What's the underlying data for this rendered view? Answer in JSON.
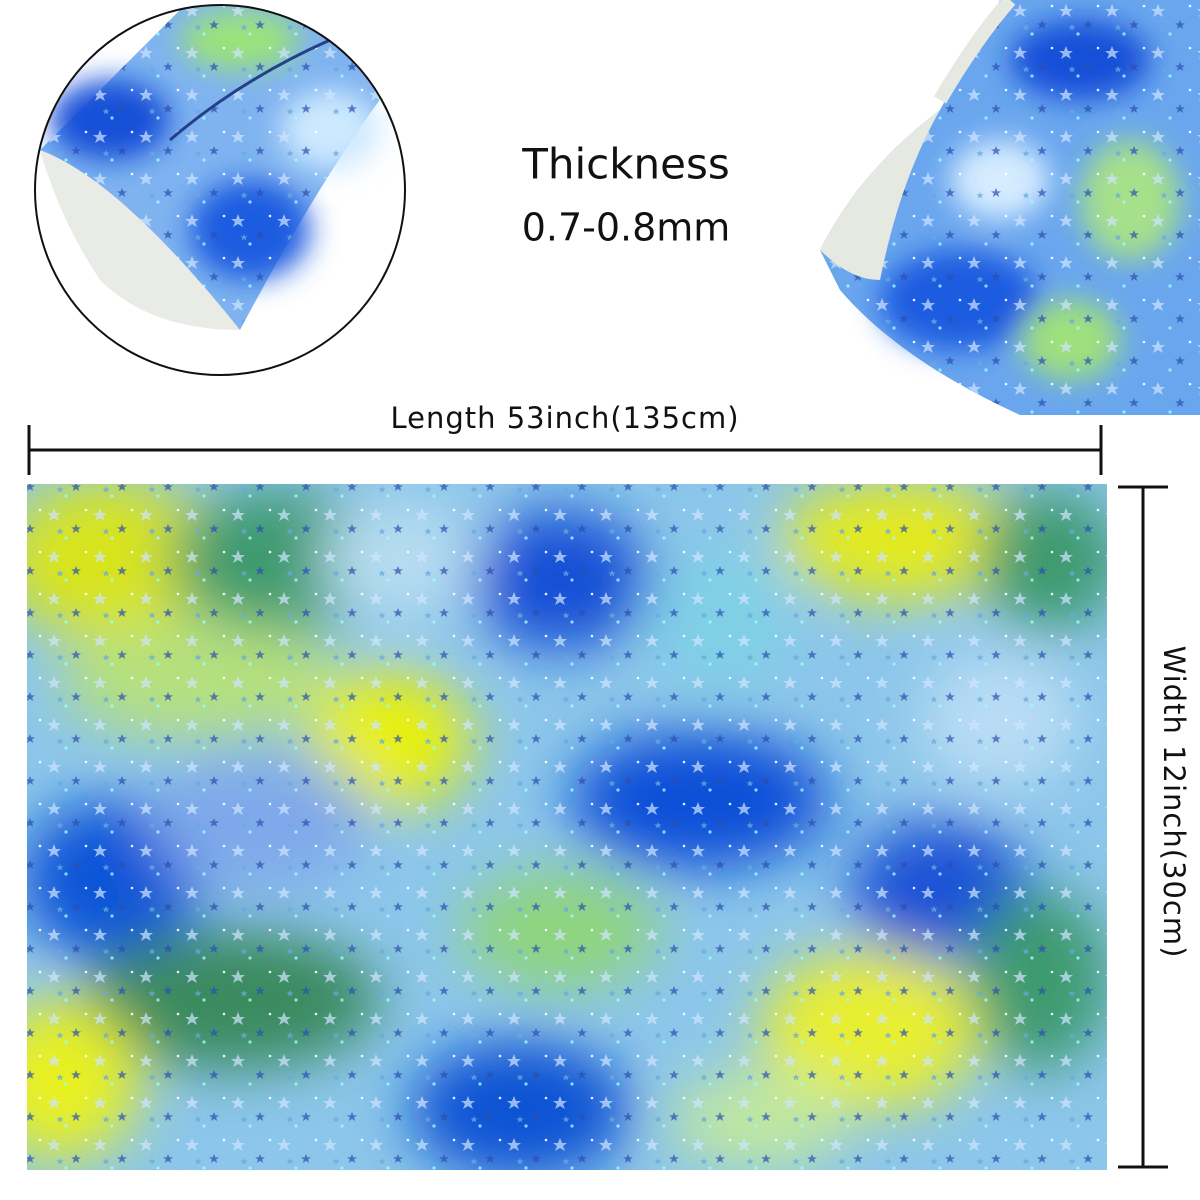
{
  "thickness": {
    "label": "Thickness",
    "value": "0.7-0.8mm"
  },
  "length": "Length 53inch(135cm)",
  "width": "Width 12inch(30cm)"
}
